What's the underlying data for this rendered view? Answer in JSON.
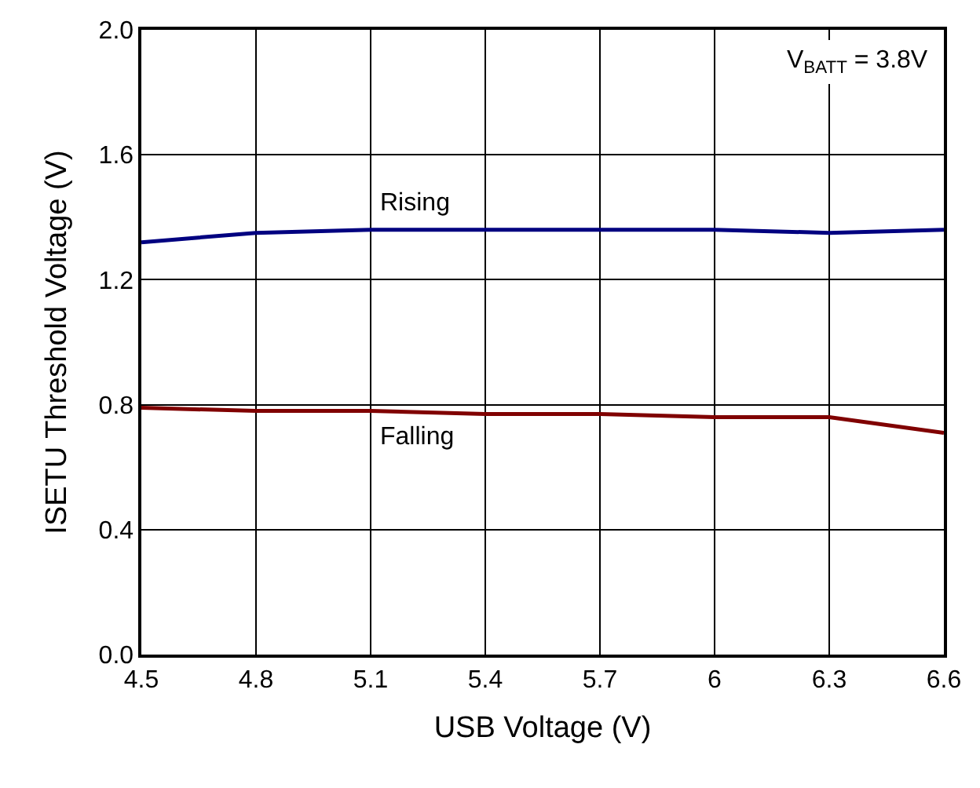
{
  "chart_data": {
    "type": "line",
    "xlabel": "USB Voltage (V)",
    "ylabel": "ISETU Threshold Voltage (V)",
    "x": [
      4.5,
      4.8,
      5.1,
      5.4,
      5.7,
      6.0,
      6.3,
      6.6
    ],
    "series": [
      {
        "name": "Rising",
        "color": "#000080",
        "values": [
          1.32,
          1.35,
          1.36,
          1.36,
          1.36,
          1.36,
          1.35,
          1.36
        ]
      },
      {
        "name": "Falling",
        "color": "#800000",
        "values": [
          0.79,
          0.78,
          0.78,
          0.77,
          0.77,
          0.76,
          0.76,
          0.71
        ]
      }
    ],
    "annotations": [
      "V$_{BATT}$ = 3.8V"
    ],
    "xlim": [
      4.5,
      6.6
    ],
    "xticks": [
      4.5,
      4.8,
      5.1,
      5.4,
      5.7,
      {
        "value": 6.0,
        "label": "6"
      },
      6.3,
      6.6
    ],
    "ylim": [
      0,
      2.0
    ],
    "yticks": [
      {
        "value": 0,
        "label": "0.0"
      },
      0.4,
      0.8,
      1.2,
      1.6,
      {
        "value": 2.0,
        "label": "2.0"
      }
    ],
    "grid": true,
    "legend": false,
    "marker": "none",
    "line_style": "solid"
  }
}
